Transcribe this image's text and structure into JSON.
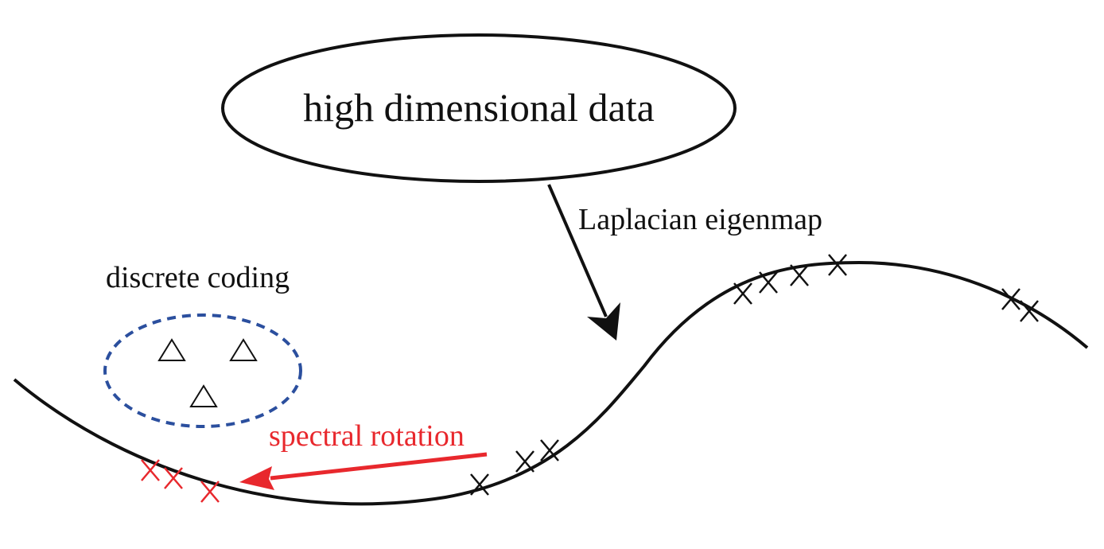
{
  "diagram": {
    "data_node": {
      "label": "high dimensional data"
    },
    "embedding_arrow": {
      "label": "Laplacian eigenmap"
    },
    "coding_region": {
      "label": "discrete coding",
      "symbols": [
        "triangle",
        "triangle",
        "triangle"
      ]
    },
    "rotation_arrow": {
      "label": "spectral rotation"
    },
    "manifold": {
      "marker_icon": "cross-marker"
    }
  },
  "colors": {
    "ink": "#111111",
    "rotation_red": "#e8282d",
    "coding_blue": "#2b4f9e",
    "background": "#ffffff"
  }
}
